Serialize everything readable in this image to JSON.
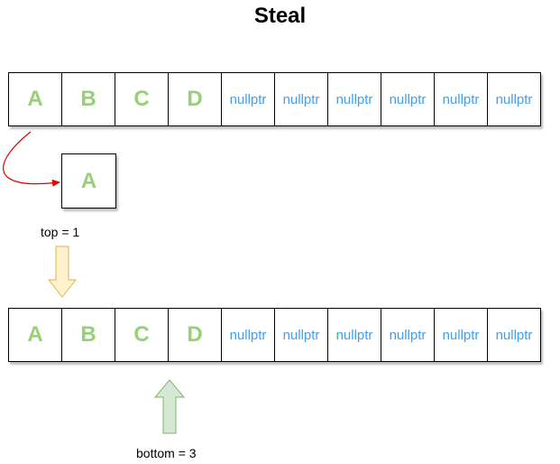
{
  "title": "Steal",
  "array_before": {
    "cells": [
      "A",
      "B",
      "C",
      "D",
      "nullptr",
      "nullptr",
      "nullptr",
      "nullptr",
      "nullptr",
      "nullptr"
    ]
  },
  "stolen_item": "A",
  "top_label": "top = 1",
  "array_after": {
    "cells": [
      "A",
      "B",
      "C",
      "D",
      "nullptr",
      "nullptr",
      "nullptr",
      "nullptr",
      "nullptr",
      "nullptr"
    ]
  },
  "bottom_label": "bottom = 3",
  "colors": {
    "letter": "#97d077",
    "null": "#3ea0f0",
    "steal_arrow": "#e60000",
    "top_arrow_fill": "#fff2cc",
    "top_arrow_stroke": "#d6b656",
    "bottom_arrow_fill": "#d5e8d4",
    "bottom_arrow_stroke": "#82b366"
  }
}
